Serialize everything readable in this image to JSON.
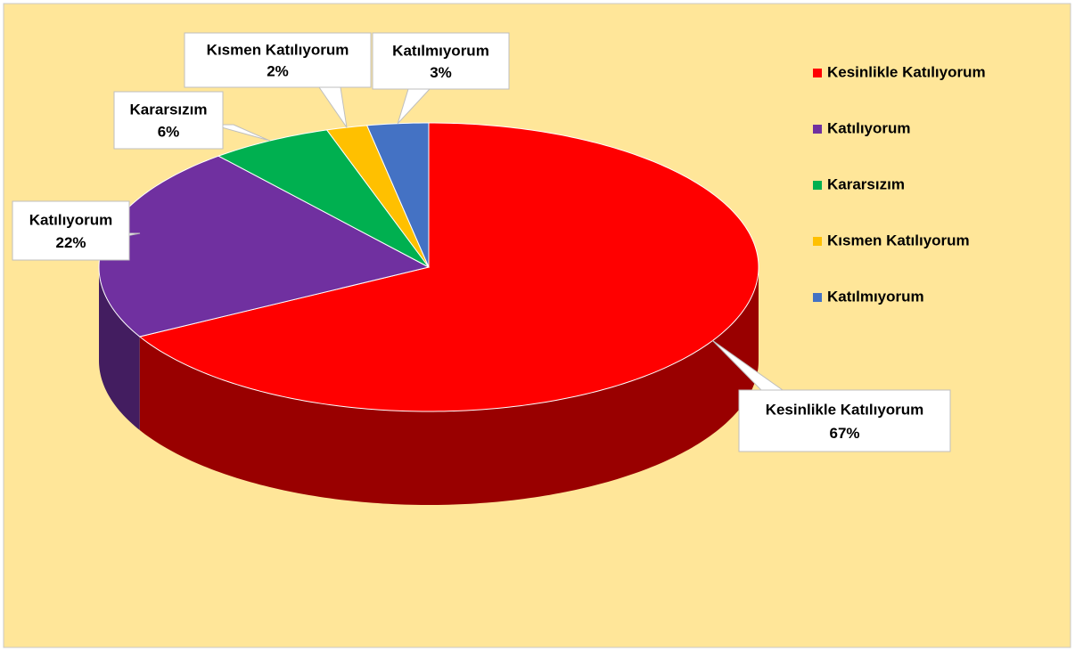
{
  "chart_data": {
    "type": "pie3d",
    "categories": [
      "Kesinlikle Katılıyorum",
      "Katılıyorum",
      "Kararsızım",
      "Kısmen Katılıyorum",
      "Katılmıyorum"
    ],
    "values": [
      67,
      22,
      6,
      2,
      3
    ],
    "value_labels": [
      "67%",
      "22%",
      "6%",
      "2%",
      "3%"
    ],
    "colors": [
      "#ff0000",
      "#7030a0",
      "#00b050",
      "#ffc000",
      "#4472c4"
    ],
    "legend": "right"
  }
}
